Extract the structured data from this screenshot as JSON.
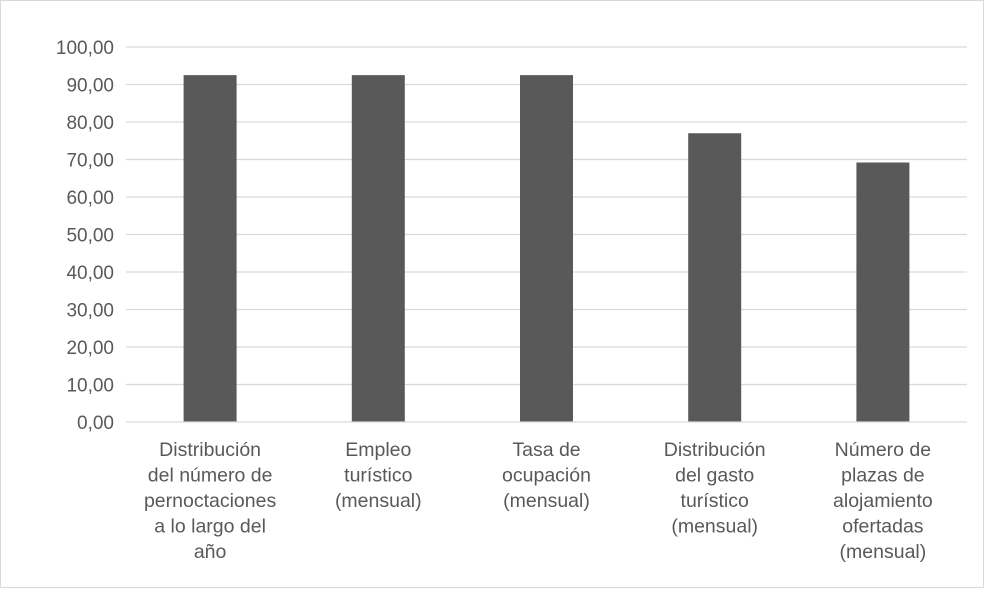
{
  "chart_data": {
    "type": "bar",
    "categories": [
      [
        "Distribución",
        "del número de",
        "pernoctaciones",
        "a lo largo del",
        "año"
      ],
      [
        "Empleo",
        "turístico",
        "(mensual)"
      ],
      [
        "Tasa de",
        "ocupación",
        "(mensual)"
      ],
      [
        "Distribución",
        "del gasto",
        "turístico",
        "(mensual)"
      ],
      [
        "Número de",
        "plazas de",
        "alojamiento",
        "ofertadas",
        "(mensual)"
      ]
    ],
    "values": [
      92.5,
      92.5,
      92.5,
      77.0,
      69.2
    ],
    "ylim": [
      0,
      100
    ],
    "yticks": [
      "0,00",
      "10,00",
      "20,00",
      "30,00",
      "40,00",
      "50,00",
      "60,00",
      "70,00",
      "80,00",
      "90,00",
      "100,00"
    ],
    "xlabel": "",
    "ylabel": "",
    "grid": true,
    "legend": "none",
    "bar_color": "#595959",
    "grid_color": "#d9d9d9",
    "text_color": "#595959"
  }
}
